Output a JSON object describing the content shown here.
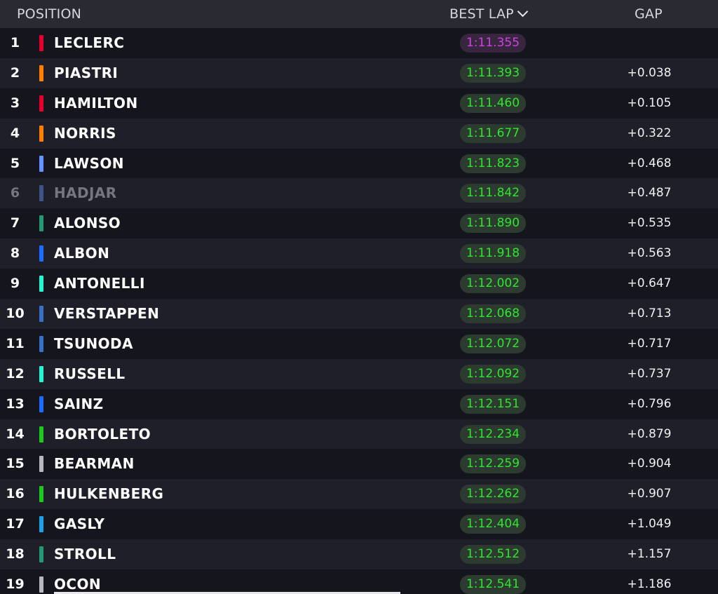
{
  "header": {
    "position_label": "POSITION",
    "best_lap_label": "BEST LAP",
    "gap_label": "GAP",
    "sort_icon": "chevron-down-icon"
  },
  "colors": {
    "background": "#15151e",
    "row_alt": "#1f1f29",
    "header_bg": "#2a2a33",
    "personal_best": "#2fe62f",
    "overall_best": "#d040e6"
  },
  "rows": [
    {
      "pos": "1",
      "driver": "LECLERC",
      "team_color": "#e8002d",
      "best_lap": "1:11.355",
      "gap": "",
      "fastest": true
    },
    {
      "pos": "2",
      "driver": "PIASTRI",
      "team_color": "#ff8000",
      "best_lap": "1:11.393",
      "gap": "+0.038"
    },
    {
      "pos": "3",
      "driver": "HAMILTON",
      "team_color": "#e8002d",
      "best_lap": "1:11.460",
      "gap": "+0.105"
    },
    {
      "pos": "4",
      "driver": "NORRIS",
      "team_color": "#ff8000",
      "best_lap": "1:11.677",
      "gap": "+0.322"
    },
    {
      "pos": "5",
      "driver": "LAWSON",
      "team_color": "#6692ff",
      "best_lap": "1:11.823",
      "gap": "+0.468"
    },
    {
      "pos": "6",
      "driver": "HADJAR",
      "team_color": "#6692ff",
      "best_lap": "1:11.842",
      "gap": "+0.487",
      "faded": true
    },
    {
      "pos": "7",
      "driver": "ALONSO",
      "team_color": "#229971",
      "best_lap": "1:11.890",
      "gap": "+0.535"
    },
    {
      "pos": "8",
      "driver": "ALBON",
      "team_color": "#1e6bff",
      "best_lap": "1:11.918",
      "gap": "+0.563"
    },
    {
      "pos": "9",
      "driver": "ANTONELLI",
      "team_color": "#27f4d2",
      "best_lap": "1:12.002",
      "gap": "+0.647"
    },
    {
      "pos": "10",
      "driver": "VERSTAPPEN",
      "team_color": "#3671c6",
      "best_lap": "1:12.068",
      "gap": "+0.713"
    },
    {
      "pos": "11",
      "driver": "TSUNODA",
      "team_color": "#3671c6",
      "best_lap": "1:12.072",
      "gap": "+0.717"
    },
    {
      "pos": "12",
      "driver": "RUSSELL",
      "team_color": "#27f4d2",
      "best_lap": "1:12.092",
      "gap": "+0.737"
    },
    {
      "pos": "13",
      "driver": "SAINZ",
      "team_color": "#1e6bff",
      "best_lap": "1:12.151",
      "gap": "+0.796"
    },
    {
      "pos": "14",
      "driver": "BORTOLETO",
      "team_color": "#1ec81e",
      "best_lap": "1:12.234",
      "gap": "+0.879"
    },
    {
      "pos": "15",
      "driver": "BEARMAN",
      "team_color": "#b6babd",
      "best_lap": "1:12.259",
      "gap": "+0.904"
    },
    {
      "pos": "16",
      "driver": "HULKENBERG",
      "team_color": "#1ec81e",
      "best_lap": "1:12.262",
      "gap": "+0.907"
    },
    {
      "pos": "17",
      "driver": "GASLY",
      "team_color": "#1ea0e6",
      "best_lap": "1:12.404",
      "gap": "+1.049"
    },
    {
      "pos": "18",
      "driver": "STROLL",
      "team_color": "#229971",
      "best_lap": "1:12.512",
      "gap": "+1.157"
    },
    {
      "pos": "19",
      "driver": "OCON",
      "team_color": "#b6babd",
      "best_lap": "1:12.541",
      "gap": "+1.186"
    }
  ]
}
